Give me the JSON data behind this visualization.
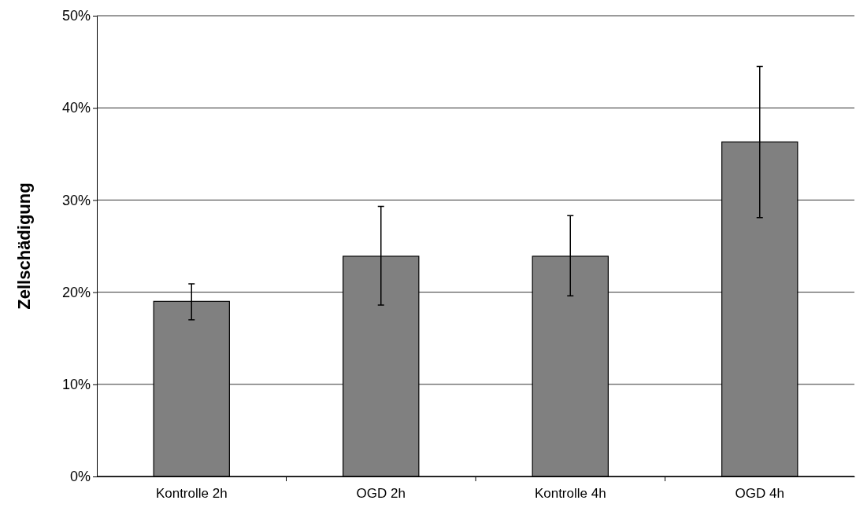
{
  "chart_data": {
    "type": "bar",
    "ylabel": "Zellschädigung",
    "categories": [
      "Kontrolle 2h",
      "OGD 2h",
      "Kontrolle 4h",
      "OGD 4h"
    ],
    "values": [
      19.0,
      23.9,
      23.9,
      36.3
    ],
    "errors": [
      [
        17.0,
        20.9
      ],
      [
        18.6,
        29.3
      ],
      [
        19.6,
        28.3
      ],
      [
        28.1,
        44.5
      ]
    ],
    "color": "#808080",
    "ylim": [
      0,
      50
    ],
    "yticks": [
      {
        "value": 0,
        "label": "0%"
      },
      {
        "value": 10,
        "label": "10%"
      },
      {
        "value": 20,
        "label": "20%"
      },
      {
        "value": 30,
        "label": "30%"
      },
      {
        "value": 40,
        "label": "40%"
      },
      {
        "value": 50,
        "label": "50%"
      }
    ],
    "grid": "y"
  }
}
